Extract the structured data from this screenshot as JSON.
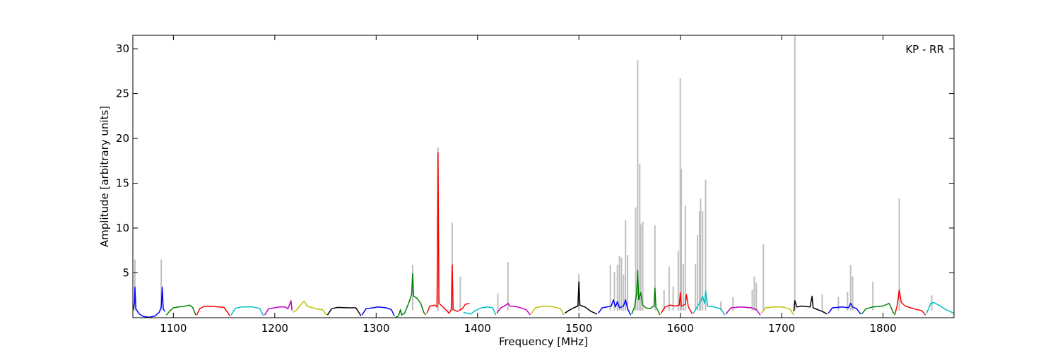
{
  "chart_data": {
    "type": "line",
    "xlabel": "Frequency [MHz]",
    "ylabel": "Amplitude [arbitrary units]",
    "annotation": "KP - RR",
    "xlim": [
      1060,
      1870
    ],
    "ylim": [
      0,
      31.5
    ],
    "xticks": [
      1100,
      1200,
      1300,
      1400,
      1500,
      1600,
      1700,
      1800
    ],
    "yticks": [
      5,
      10,
      15,
      20,
      25,
      30
    ],
    "grid": false,
    "raw_spikes": [
      [
        1062,
        6.5
      ],
      [
        1088,
        6.5
      ],
      [
        1336,
        5.9
      ],
      [
        1361,
        19.0
      ],
      [
        1375,
        10.6
      ],
      [
        1383,
        4.6
      ],
      [
        1420,
        2.7
      ],
      [
        1430,
        6.2
      ],
      [
        1500,
        4.9
      ],
      [
        1531,
        5.9
      ],
      [
        1535,
        5.1
      ],
      [
        1538,
        5.9
      ],
      [
        1540,
        6.9
      ],
      [
        1542,
        6.7
      ],
      [
        1544,
        4.8
      ],
      [
        1546,
        10.9
      ],
      [
        1548,
        7.0
      ],
      [
        1556,
        12.3
      ],
      [
        1558,
        28.7
      ],
      [
        1560,
        17.2
      ],
      [
        1561,
        10.4
      ],
      [
        1563,
        10.7
      ],
      [
        1575,
        10.3
      ],
      [
        1584,
        3.1
      ],
      [
        1589,
        5.7
      ],
      [
        1593,
        3.5
      ],
      [
        1598,
        7.5
      ],
      [
        1600,
        26.7
      ],
      [
        1601,
        16.6
      ],
      [
        1603,
        6.0
      ],
      [
        1605,
        12.5
      ],
      [
        1615,
        6.0
      ],
      [
        1617,
        9.2
      ],
      [
        1619,
        11.9
      ],
      [
        1620,
        13.3
      ],
      [
        1622,
        11.9
      ],
      [
        1625,
        15.4
      ],
      [
        1640,
        1.8
      ],
      [
        1652,
        2.3
      ],
      [
        1671,
        3.1
      ],
      [
        1673,
        4.6
      ],
      [
        1675,
        3.9
      ],
      [
        1682,
        8.2
      ],
      [
        1713,
        31.5
      ],
      [
        1740,
        2.6
      ],
      [
        1756,
        2.3
      ],
      [
        1765,
        2.9
      ],
      [
        1768,
        5.9
      ],
      [
        1770,
        4.6
      ],
      [
        1790,
        4.0
      ],
      [
        1816,
        13.3
      ],
      [
        1848,
        2.5
      ]
    ],
    "series": [
      {
        "color": "#0000ff",
        "values": [
          [
            1060,
            0.8
          ],
          [
            1061.5,
            1.6
          ],
          [
            1062,
            3.4
          ],
          [
            1063,
            1.0
          ],
          [
            1066,
            0.45
          ],
          [
            1070,
            0.15
          ],
          [
            1076,
            0.05
          ],
          [
            1082,
            0.2
          ],
          [
            1086,
            0.6
          ],
          [
            1088,
            1.2
          ],
          [
            1089,
            3.4
          ],
          [
            1090,
            1.0
          ],
          [
            1091.5,
            0.7
          ]
        ]
      },
      {
        "color": "#008000",
        "values": [
          [
            1093,
            0.3
          ],
          [
            1097,
            0.8
          ],
          [
            1100,
            1.1
          ],
          [
            1105,
            1.2
          ],
          [
            1112,
            1.3
          ],
          [
            1116,
            1.4
          ],
          [
            1119,
            1.15
          ],
          [
            1122,
            0.3
          ]
        ]
      },
      {
        "color": "#ff0000",
        "values": [
          [
            1123,
            0.3
          ],
          [
            1126,
            1.0
          ],
          [
            1130,
            1.25
          ],
          [
            1140,
            1.25
          ],
          [
            1150,
            1.15
          ],
          [
            1154,
            0.5
          ],
          [
            1156,
            0.2
          ]
        ]
      },
      {
        "color": "#00bfbf",
        "values": [
          [
            1157,
            0.3
          ],
          [
            1161,
            1.05
          ],
          [
            1167,
            1.2
          ],
          [
            1178,
            1.2
          ],
          [
            1185,
            1.05
          ],
          [
            1188,
            0.4
          ],
          [
            1189,
            0.2
          ]
        ]
      },
      {
        "color": "#bf00bf",
        "values": [
          [
            1190,
            0.3
          ],
          [
            1194,
            1.0
          ],
          [
            1200,
            1.1
          ],
          [
            1205,
            1.2
          ],
          [
            1210,
            1.2
          ],
          [
            1213,
            1.0
          ],
          [
            1216,
            1.9
          ],
          [
            1217,
            0.8
          ]
        ]
      },
      {
        "color": "#bfbf00",
        "values": [
          [
            1218,
            0.6
          ],
          [
            1222,
            0.9
          ],
          [
            1226,
            1.5
          ],
          [
            1229,
            1.85
          ],
          [
            1232,
            1.3
          ],
          [
            1240,
            1.0
          ],
          [
            1247,
            0.9
          ],
          [
            1251,
            0.3
          ]
        ]
      },
      {
        "color": "#000000",
        "values": [
          [
            1252,
            0.3
          ],
          [
            1256,
            1.0
          ],
          [
            1262,
            1.15
          ],
          [
            1272,
            1.1
          ],
          [
            1280,
            1.1
          ],
          [
            1284,
            0.4
          ],
          [
            1285,
            0.2
          ]
        ]
      },
      {
        "color": "#0000ff",
        "values": [
          [
            1286,
            0.3
          ],
          [
            1290,
            1.0
          ],
          [
            1297,
            1.1
          ],
          [
            1302,
            1.2
          ],
          [
            1310,
            1.1
          ],
          [
            1315,
            0.9
          ],
          [
            1318,
            0.2
          ]
        ]
      },
      {
        "color": "#008000",
        "values": [
          [
            1319,
            0.05
          ],
          [
            1322,
            0.2
          ],
          [
            1324,
            0.9
          ],
          [
            1325,
            0.3
          ],
          [
            1328,
            0.5
          ],
          [
            1332,
            1.6
          ],
          [
            1335,
            2.6
          ],
          [
            1336,
            4.9
          ],
          [
            1337,
            2.4
          ],
          [
            1340,
            2.2
          ],
          [
            1344,
            1.6
          ],
          [
            1347,
            0.6
          ],
          [
            1349,
            0.3
          ]
        ]
      },
      {
        "color": "#ff0000",
        "values": [
          [
            1350,
            0.5
          ],
          [
            1353,
            1.3
          ],
          [
            1358,
            1.4
          ],
          [
            1360,
            1.2
          ],
          [
            1361,
            18.4
          ],
          [
            1362,
            1.6
          ],
          [
            1366,
            1.2
          ],
          [
            1372,
            0.5
          ],
          [
            1374,
            0.9
          ],
          [
            1375,
            5.9
          ],
          [
            1376,
            0.9
          ],
          [
            1380,
            0.7
          ],
          [
            1385,
            1.0
          ],
          [
            1388,
            1.5
          ],
          [
            1392,
            1.6
          ]
        ]
      },
      {
        "color": "#00bfbf",
        "values": [
          [
            1386,
            0.6
          ],
          [
            1390,
            0.5
          ],
          [
            1393,
            0.4
          ],
          [
            1398,
            0.8
          ],
          [
            1404,
            1.1
          ],
          [
            1410,
            1.2
          ],
          [
            1415,
            1.1
          ],
          [
            1418,
            0.3
          ]
        ]
      },
      {
        "color": "#bf00bf",
        "values": [
          [
            1419,
            0.5
          ],
          [
            1423,
            1.1
          ],
          [
            1428,
            1.4
          ],
          [
            1430,
            1.6
          ],
          [
            1432,
            1.3
          ],
          [
            1440,
            1.2
          ],
          [
            1448,
            0.9
          ],
          [
            1452,
            0.3
          ]
        ]
      },
      {
        "color": "#bfbf00",
        "values": [
          [
            1453,
            0.4
          ],
          [
            1457,
            1.1
          ],
          [
            1465,
            1.3
          ],
          [
            1475,
            1.2
          ],
          [
            1482,
            1.0
          ],
          [
            1485,
            0.3
          ]
        ]
      },
      {
        "color": "#000000",
        "values": [
          [
            1486,
            0.5
          ],
          [
            1490,
            0.8
          ],
          [
            1495,
            1.1
          ],
          [
            1499,
            1.3
          ],
          [
            1500,
            4.0
          ],
          [
            1501,
            1.4
          ],
          [
            1506,
            1.2
          ],
          [
            1512,
            0.7
          ],
          [
            1518,
            0.4
          ]
        ]
      },
      {
        "color": "#0000ff",
        "values": [
          [
            1519,
            0.5
          ],
          [
            1523,
            1.1
          ],
          [
            1528,
            1.2
          ],
          [
            1532,
            1.3
          ],
          [
            1534,
            2.0
          ],
          [
            1536,
            1.2
          ],
          [
            1538,
            1.8
          ],
          [
            1540,
            1.1
          ],
          [
            1544,
            1.3
          ],
          [
            1546,
            2.0
          ],
          [
            1548,
            1.0
          ],
          [
            1551,
            0.3
          ]
        ]
      },
      {
        "color": "#008000",
        "values": [
          [
            1552,
            0.4
          ],
          [
            1555,
            1.2
          ],
          [
            1557,
            2.8
          ],
          [
            1558,
            5.3
          ],
          [
            1559,
            2.0
          ],
          [
            1561,
            2.8
          ],
          [
            1563,
            1.4
          ],
          [
            1566,
            1.1
          ],
          [
            1570,
            1.0
          ],
          [
            1574,
            1.3
          ],
          [
            1575,
            3.3
          ],
          [
            1576,
            1.2
          ],
          [
            1580,
            0.3
          ]
        ]
      },
      {
        "color": "#ff0000",
        "values": [
          [
            1581,
            0.5
          ],
          [
            1585,
            1.2
          ],
          [
            1590,
            1.4
          ],
          [
            1595,
            1.3
          ],
          [
            1599,
            1.4
          ],
          [
            1600,
            2.8
          ],
          [
            1601,
            1.3
          ],
          [
            1605,
            1.5
          ],
          [
            1606,
            2.6
          ],
          [
            1608,
            1.2
          ],
          [
            1612,
            0.4
          ]
        ]
      },
      {
        "color": "#00bfbf",
        "values": [
          [
            1613,
            0.5
          ],
          [
            1617,
            1.3
          ],
          [
            1620,
            1.8
          ],
          [
            1622,
            2.4
          ],
          [
            1624,
            1.6
          ],
          [
            1625,
            3.0
          ],
          [
            1627,
            1.3
          ],
          [
            1633,
            1.2
          ],
          [
            1640,
            1.0
          ],
          [
            1644,
            0.3
          ]
        ]
      },
      {
        "color": "#bf00bf",
        "values": [
          [
            1645,
            0.4
          ],
          [
            1650,
            1.1
          ],
          [
            1660,
            1.2
          ],
          [
            1670,
            1.1
          ],
          [
            1675,
            0.9
          ],
          [
            1679,
            0.3
          ]
        ]
      },
      {
        "color": "#bfbf00",
        "values": [
          [
            1680,
            0.5
          ],
          [
            1684,
            1.1
          ],
          [
            1692,
            1.2
          ],
          [
            1700,
            1.2
          ],
          [
            1708,
            1.0
          ],
          [
            1712,
            0.3
          ]
        ]
      },
      {
        "color": "#000000",
        "values": [
          [
            1712,
            0.7
          ],
          [
            1713,
            1.9
          ],
          [
            1715,
            1.2
          ],
          [
            1720,
            1.3
          ],
          [
            1728,
            1.2
          ],
          [
            1730,
            2.4
          ],
          [
            1731,
            1.1
          ],
          [
            1740,
            0.7
          ],
          [
            1745,
            0.4
          ]
        ]
      },
      {
        "color": "#0000ff",
        "values": [
          [
            1746,
            0.5
          ],
          [
            1750,
            1.1
          ],
          [
            1760,
            1.2
          ],
          [
            1766,
            1.1
          ],
          [
            1768,
            1.6
          ],
          [
            1770,
            1.2
          ],
          [
            1774,
            1.0
          ],
          [
            1778,
            0.4
          ]
        ]
      },
      {
        "color": "#008000",
        "values": [
          [
            1779,
            0.4
          ],
          [
            1783,
            1.0
          ],
          [
            1790,
            1.2
          ],
          [
            1800,
            1.3
          ],
          [
            1806,
            1.6
          ],
          [
            1810,
            0.6
          ],
          [
            1812,
            0.3
          ]
        ]
      },
      {
        "color": "#ff0000",
        "values": [
          [
            1812,
            0.5
          ],
          [
            1814,
            1.4
          ],
          [
            1816,
            3.1
          ],
          [
            1818,
            1.7
          ],
          [
            1822,
            1.3
          ],
          [
            1830,
            1.0
          ],
          [
            1838,
            0.8
          ],
          [
            1842,
            0.3
          ]
        ]
      },
      {
        "color": "#00bfbf",
        "values": [
          [
            1843,
            0.5
          ],
          [
            1847,
            1.6
          ],
          [
            1850,
            1.7
          ],
          [
            1855,
            1.4
          ],
          [
            1862,
            0.9
          ],
          [
            1870,
            0.5
          ]
        ]
      }
    ],
    "raw_color": "#bfbfbf"
  }
}
